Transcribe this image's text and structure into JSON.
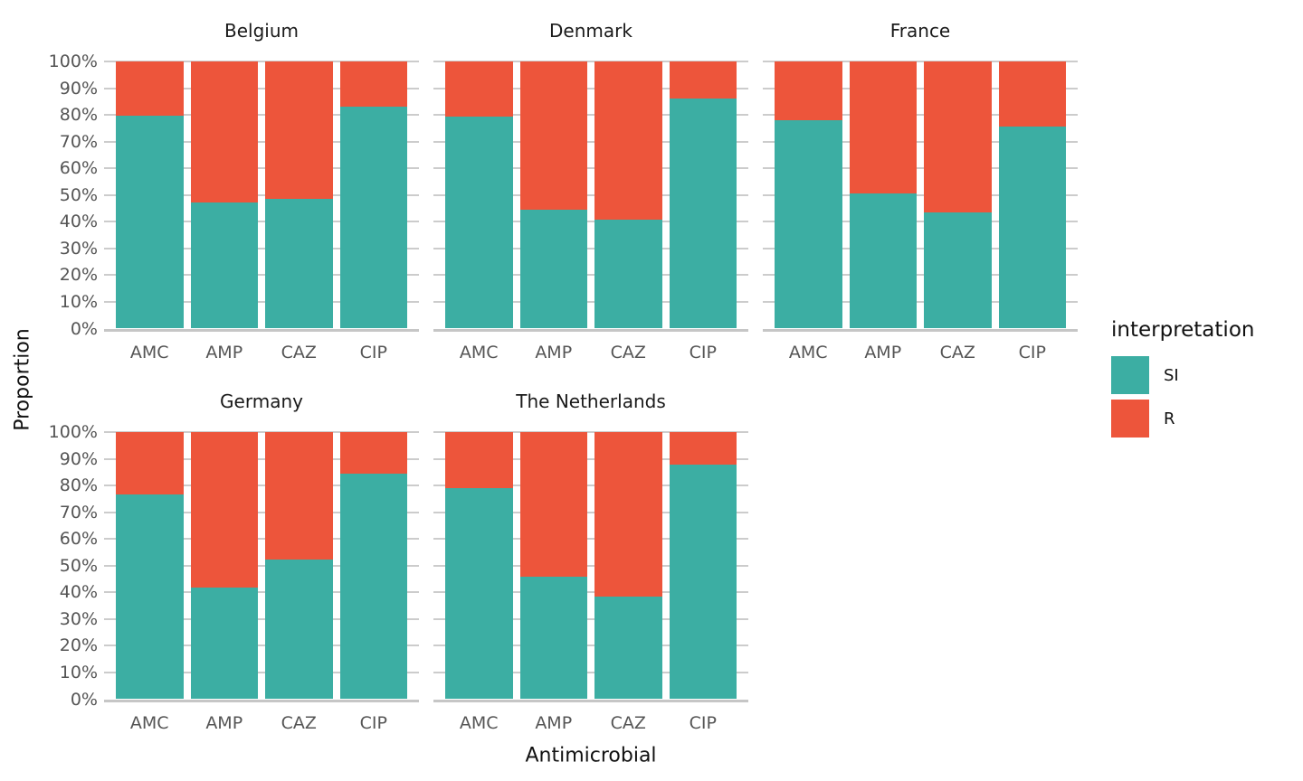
{
  "chart_data": {
    "type": "bar",
    "stacked": true,
    "percent": true,
    "xlabel": "Antimicrobial",
    "ylabel": "Proportion",
    "legend_title": "interpretation",
    "legend_position": "right",
    "grid": true,
    "categories": [
      "AMC",
      "AMP",
      "CAZ",
      "CIP"
    ],
    "y_ticks": [
      "100%",
      "90%",
      "80%",
      "70%",
      "60%",
      "50%",
      "40%",
      "30%",
      "20%",
      "10%",
      "0%"
    ],
    "ylim": [
      0,
      100
    ],
    "series_names": [
      "SI",
      "R"
    ],
    "colors": {
      "SI": "#3CAEA3",
      "R": "#ED553B"
    },
    "facets": [
      {
        "name": "Belgium",
        "SI": [
          79.6,
          47.3,
          48.4,
          83.1
        ],
        "R": [
          20.4,
          52.7,
          51.6,
          16.9
        ]
      },
      {
        "name": "Denmark",
        "SI": [
          79.3,
          44.6,
          40.9,
          86.2
        ],
        "R": [
          20.7,
          55.4,
          59.1,
          13.8
        ]
      },
      {
        "name": "France",
        "SI": [
          78.1,
          50.6,
          43.4,
          75.6
        ],
        "R": [
          21.9,
          49.4,
          56.6,
          24.4
        ]
      },
      {
        "name": "Germany",
        "SI": [
          76.8,
          41.7,
          52.3,
          84.5
        ],
        "R": [
          23.2,
          58.3,
          47.7,
          15.5
        ]
      },
      {
        "name": "The Netherlands",
        "SI": [
          78.9,
          45.9,
          38.3,
          87.8
        ],
        "R": [
          21.1,
          54.1,
          61.7,
          12.2
        ]
      }
    ]
  },
  "style_colors": {
    "gridline": "#cccccc",
    "tick_text": "#555555",
    "title_text": "#1a1a1a"
  }
}
